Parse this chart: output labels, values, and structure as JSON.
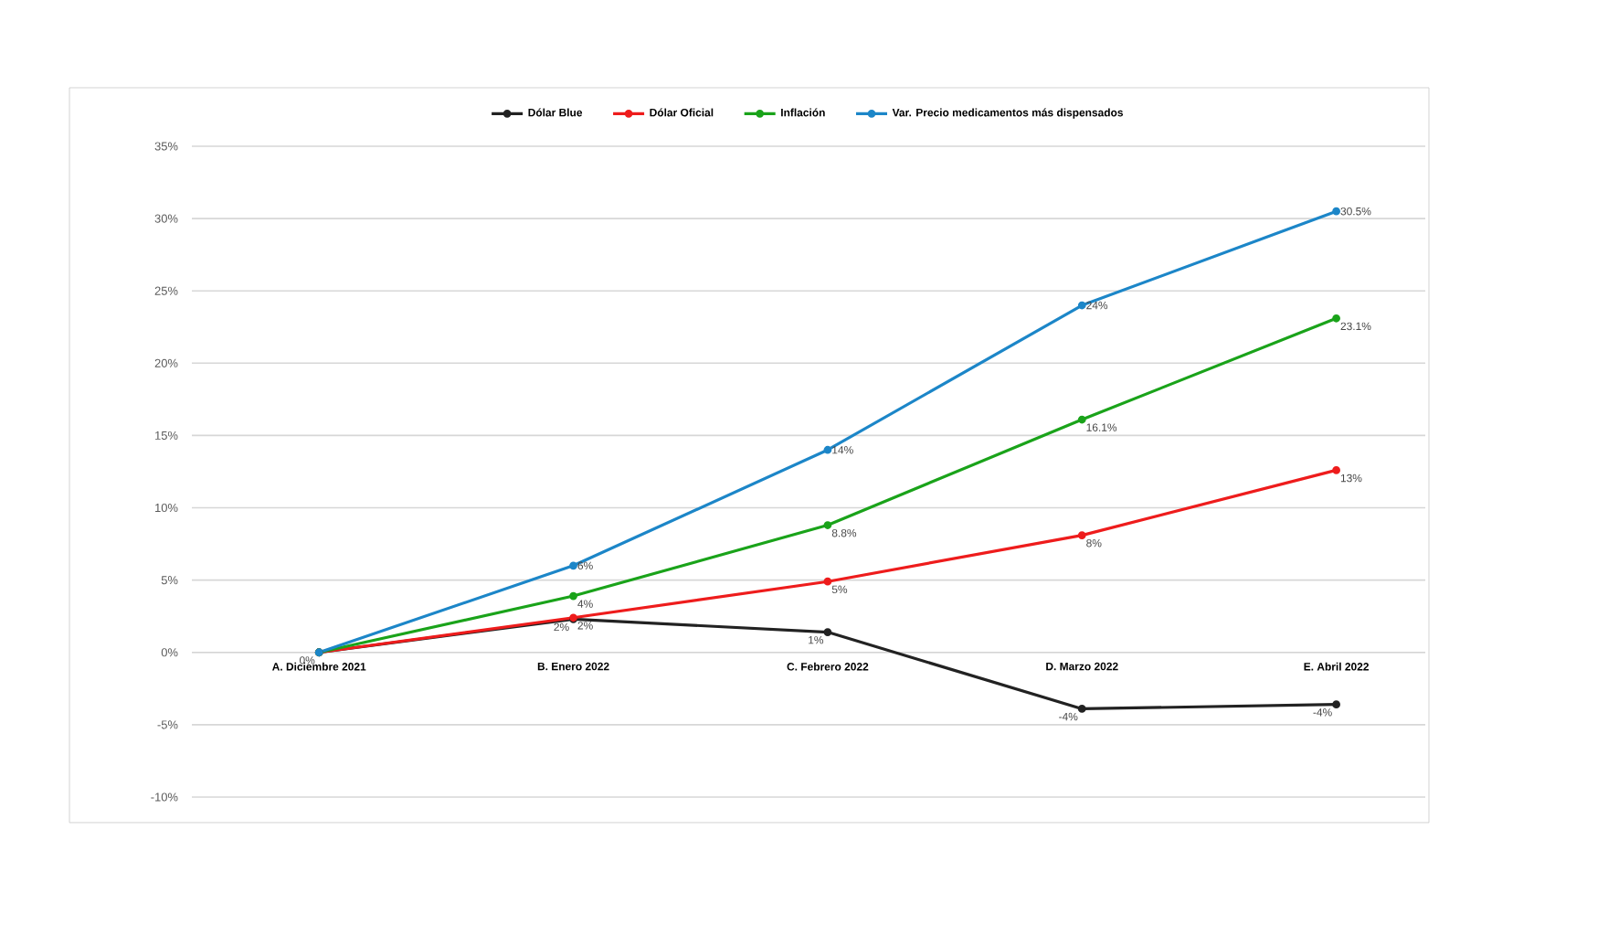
{
  "chart_data": {
    "type": "line",
    "categories": [
      "A. Diciembre 2021",
      "B. Enero 2022",
      "C. Febrero 2022",
      "D. Marzo 2022",
      "E. Abril 2022"
    ],
    "series": [
      {
        "name": "Dólar Blue",
        "color": "#222222",
        "values": [
          0,
          2.3,
          1.4,
          -3.9,
          -3.6
        ],
        "value_labels": [
          "0%",
          "2%",
          "1%",
          "-4%",
          "-4%"
        ]
      },
      {
        "name": "Dólar Oficial",
        "color": "#ee1c1c",
        "values": [
          0,
          2.4,
          4.9,
          8.1,
          12.6
        ],
        "value_labels": [
          null,
          "2%",
          "5%",
          "8%",
          "13%"
        ]
      },
      {
        "name": "Inflación",
        "color": "#1aa31a",
        "values": [
          0,
          3.9,
          8.8,
          16.1,
          23.1
        ],
        "value_labels": [
          null,
          "4%",
          "8.8%",
          "16.1%",
          "23.1%"
        ]
      },
      {
        "name": "Var. Precio medicamentos más dispensados",
        "color": "#1c86c8",
        "values": [
          0,
          6,
          14,
          24,
          30.5
        ],
        "value_labels": [
          null,
          "6%",
          "14%",
          "24%",
          "30.5%"
        ]
      }
    ],
    "ylim": [
      -10,
      35
    ],
    "yticks": [
      {
        "value": -10,
        "label": "-10%"
      },
      {
        "value": -5,
        "label": "-5%"
      },
      {
        "value": 0,
        "label": "0%"
      },
      {
        "value": 5,
        "label": "5%"
      },
      {
        "value": 10,
        "label": "10%"
      },
      {
        "value": 15,
        "label": "15%"
      },
      {
        "value": 20,
        "label": "20%"
      },
      {
        "value": 25,
        "label": "25%"
      },
      {
        "value": 30,
        "label": "30%"
      },
      {
        "value": 35,
        "label": "35%"
      }
    ],
    "grid": "y",
    "legend": "top",
    "marker": "circle",
    "line_style": "solid"
  }
}
